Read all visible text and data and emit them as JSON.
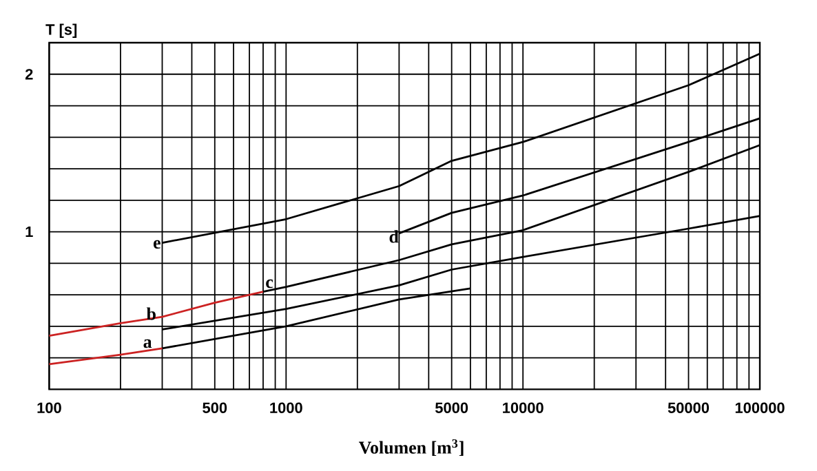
{
  "chart_data": {
    "type": "line",
    "xlabel": "Volumen [m$^{3}$]",
    "ylabel": "T [s]",
    "log": "x",
    "grid": true,
    "marker": "none",
    "xlim": [
      100,
      100000
    ],
    "ylim": [
      0,
      2.2
    ],
    "xticks": [
      100,
      {
        "value": 200,
        "label": null
      },
      {
        "value": 300,
        "label": null
      },
      {
        "value": 400,
        "label": null
      },
      500,
      {
        "value": 600,
        "label": null
      },
      {
        "value": 700,
        "label": null
      },
      {
        "value": 800,
        "label": null
      },
      {
        "value": 900,
        "label": null
      },
      1000,
      {
        "value": 2000,
        "label": null
      },
      {
        "value": 3000,
        "label": null
      },
      {
        "value": 4000,
        "label": null
      },
      5000,
      {
        "value": 6000,
        "label": null
      },
      {
        "value": 7000,
        "label": null
      },
      {
        "value": 8000,
        "label": null
      },
      {
        "value": 9000,
        "label": null
      },
      10000,
      {
        "value": 20000,
        "label": null
      },
      {
        "value": 30000,
        "label": null
      },
      {
        "value": 40000,
        "label": null
      },
      50000,
      {
        "value": 60000,
        "label": null
      },
      {
        "value": 70000,
        "label": null
      },
      {
        "value": 80000,
        "label": null
      },
      {
        "value": 90000,
        "label": null
      },
      100000
    ],
    "yticks": [
      {
        "value": 0.2,
        "label": null
      },
      {
        "value": 0.4,
        "label": null
      },
      {
        "value": 0.6,
        "label": null
      },
      {
        "value": 0.8,
        "label": null
      },
      1,
      {
        "value": 1.2,
        "label": null
      },
      {
        "value": 1.4,
        "label": null
      },
      {
        "value": 1.6,
        "label": null
      },
      {
        "value": 1.8,
        "label": null
      },
      2
    ],
    "series": [
      {
        "color": "#000000",
        "x": [
          300,
          1000,
          3000,
          5000,
          10000,
          50000,
          100000
        ],
        "values": [
          0.93,
          1.08,
          1.29,
          1.45,
          1.57,
          1.93,
          2.13
        ]
      },
      {
        "color": "#000000",
        "x": [
          3000,
          5000,
          10000,
          50000,
          100000
        ],
        "values": [
          0.99,
          1.12,
          1.23,
          1.57,
          1.72
        ]
      },
      {
        "color": "#cc2222",
        "x": [
          100,
          200,
          300,
          500,
          800
        ],
        "values": [
          0.34,
          0.42,
          0.46,
          0.55,
          0.62
        ]
      },
      {
        "color": "#000000",
        "x": [
          800,
          1000,
          3000,
          5000,
          10000,
          50000,
          100000
        ],
        "values": [
          0.62,
          0.65,
          0.82,
          0.92,
          1.01,
          1.38,
          1.55
        ]
      },
      {
        "color": "#000000",
        "x": [
          300,
          1000,
          3000,
          5000,
          10000,
          50000,
          100000
        ],
        "values": [
          0.38,
          0.51,
          0.66,
          0.76,
          0.84,
          1.02,
          1.1
        ]
      },
      {
        "color": "#000000",
        "x": [
          300,
          1000,
          3000,
          6000
        ],
        "values": [
          0.26,
          0.4,
          0.57,
          0.64
        ]
      },
      {
        "color": "#cc2222",
        "x": [
          100,
          200,
          300
        ],
        "values": [
          0.16,
          0.22,
          0.26
        ]
      }
    ],
    "annotations": [
      {
        "text": "e",
        "x": 285,
        "y": 0.92
      },
      {
        "text": "d",
        "x": 2850,
        "y": 0.97
      },
      {
        "text": "c",
        "x": 850,
        "y": 0.67
      },
      {
        "text": "b",
        "x": 270,
        "y": 0.48
      },
      {
        "text": "a",
        "x": 260,
        "y": 0.29
      }
    ]
  }
}
